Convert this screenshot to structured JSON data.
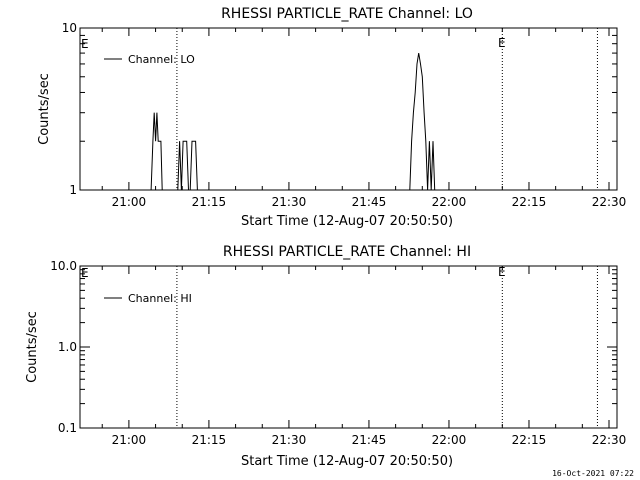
{
  "footer": {
    "timestamp": "16-Oct-2021 07:22"
  },
  "chart_data": [
    {
      "type": "line",
      "title": "RHESSI PARTICLE_RATE Channel: LO",
      "xlabel": "Start Time (12-Aug-07 20:50:50)",
      "ylabel": "Counts/sec",
      "x_tick_labels": [
        "21:00",
        "21:15",
        "21:30",
        "21:45",
        "22:00",
        "22:15",
        "22:30"
      ],
      "y_tick_labels": [
        "1",
        "10"
      ],
      "yscale": "log",
      "ylim": [
        1,
        10
      ],
      "grid": false,
      "legend": {
        "position": "top-left",
        "entries": [
          "Channel: LO"
        ]
      },
      "series": [
        {
          "name": "Channel: LO",
          "x": [
            "21:04:10",
            "21:04:30",
            "21:04:45",
            "21:05:00",
            "21:05:15",
            "21:05:30",
            "21:05:45",
            "21:06:00",
            "21:06:15",
            "21:06:30",
            "21:06:50",
            "21:07:10",
            "21:07:30",
            "21:08:00",
            "21:09:10",
            "21:09:30",
            "21:09:50",
            "21:10:10",
            "21:10:30",
            "21:10:50",
            "21:11:10",
            "21:11:30",
            "21:11:50",
            "21:12:10",
            "21:12:30",
            "21:12:50",
            "21:13:10",
            "21:13:30",
            "21:13:50",
            "21:14:10",
            "21:52:00",
            "21:52:40",
            "21:53:00",
            "21:53:20",
            "21:53:40",
            "21:54:00",
            "21:54:20",
            "21:54:40",
            "21:55:00",
            "21:55:20",
            "21:55:40",
            "21:56:00",
            "21:56:20",
            "21:56:40",
            "21:57:00",
            "21:57:20",
            "21:57:40",
            "21:58:00",
            "21:58:20"
          ],
          "y": [
            1,
            2,
            3,
            2,
            3,
            2,
            2,
            2,
            1,
            1,
            1,
            1,
            1,
            1,
            1,
            2,
            1,
            2,
            2,
            2,
            1,
            1,
            2,
            2,
            2,
            1,
            1,
            1,
            1,
            1,
            1,
            1,
            2,
            3,
            4,
            6,
            7,
            6,
            5,
            3,
            2,
            1,
            2,
            1,
            2,
            1,
            1,
            1,
            1
          ]
        }
      ],
      "annotations": [
        {
          "type": "vertical_dotted_line",
          "x": "21:09:00"
        },
        {
          "type": "vertical_dotted_line",
          "x": "22:10:00",
          "label": "E"
        },
        {
          "type": "vertical_dotted_line",
          "x": "22:27:50"
        },
        {
          "type": "edge_marker",
          "label": "E",
          "position": "top-left"
        }
      ]
    },
    {
      "type": "line",
      "title": "RHESSI PARTICLE_RATE Channel: HI",
      "xlabel": "Start Time (12-Aug-07 20:50:50)",
      "ylabel": "Counts/sec",
      "x_tick_labels": [
        "21:00",
        "21:15",
        "21:30",
        "21:45",
        "22:00",
        "22:15",
        "22:30"
      ],
      "y_tick_labels": [
        "0.1",
        "1.0",
        "10.0"
      ],
      "yscale": "log",
      "ylim": [
        0.1,
        10
      ],
      "grid": false,
      "legend": {
        "position": "top-left",
        "entries": [
          "Channel: HI"
        ]
      },
      "series": [
        {
          "name": "Channel: HI",
          "x": [],
          "y": []
        }
      ],
      "annotations": [
        {
          "type": "vertical_dotted_line",
          "x": "21:09:00"
        },
        {
          "type": "vertical_dotted_line",
          "x": "22:10:00",
          "label": "E"
        },
        {
          "type": "vertical_dotted_line",
          "x": "22:27:50"
        },
        {
          "type": "edge_marker",
          "label": "E",
          "position": "top-left"
        }
      ]
    }
  ]
}
